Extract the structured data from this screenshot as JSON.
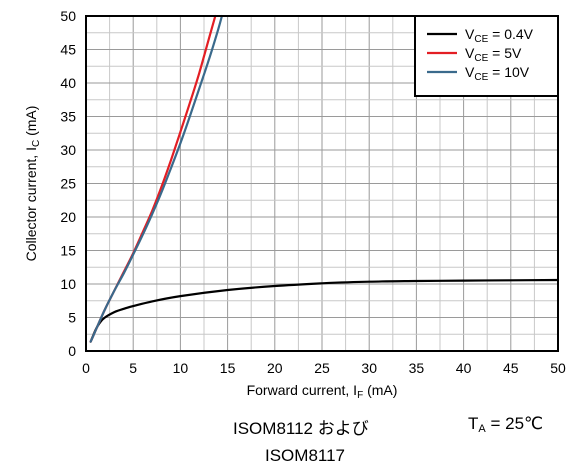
{
  "chart_data": {
    "type": "line",
    "xlabel": {
      "prefix": "Forward current, I",
      "sub": "F",
      "suffix": " (mA)"
    },
    "ylabel": {
      "prefix": "Collector current, I",
      "sub": "C",
      "suffix": " (mA)"
    },
    "xlim": [
      0,
      50
    ],
    "ylim": [
      0,
      50
    ],
    "xticks": [
      0,
      5,
      10,
      15,
      20,
      25,
      30,
      35,
      40,
      45,
      50
    ],
    "yticks": [
      0,
      5,
      10,
      15,
      20,
      25,
      30,
      35,
      40,
      45,
      50
    ],
    "grid": true,
    "legend_position": "top-right",
    "series": [
      {
        "name": {
          "prefix": "V",
          "sub": "CE",
          "suffix": " = 0.4V"
        },
        "color": "#000000",
        "x": [
          0.5,
          1,
          1.5,
          2,
          3,
          4,
          5,
          7,
          10,
          15,
          20,
          25,
          30,
          35,
          40,
          45,
          50
        ],
        "y": [
          1.4,
          3.1,
          4.3,
          5.0,
          5.8,
          6.3,
          6.7,
          7.4,
          8.2,
          9.1,
          9.7,
          10.1,
          10.35,
          10.45,
          10.5,
          10.55,
          10.6
        ]
      },
      {
        "name": {
          "prefix": "V",
          "sub": "CE",
          "suffix": " = 5V"
        },
        "color": "#e31e24",
        "x": [
          0.5,
          1,
          2,
          3,
          4,
          5,
          6,
          7,
          8,
          9,
          10,
          11,
          12,
          13,
          13.7
        ],
        "y": [
          1.4,
          3.0,
          6.2,
          9.0,
          11.8,
          14.6,
          17.7,
          20.9,
          24.5,
          28.5,
          32.7,
          37.0,
          41.5,
          46.5,
          50
        ]
      },
      {
        "name": {
          "prefix": "V",
          "sub": "CE",
          "suffix": " = 10V"
        },
        "color": "#3a6a8c",
        "x": [
          0.5,
          1,
          2,
          3,
          4,
          5,
          6,
          7,
          8,
          9,
          10,
          11,
          12,
          13,
          14,
          14.4
        ],
        "y": [
          1.4,
          3.0,
          6.2,
          9.0,
          11.6,
          14.4,
          17.3,
          20.4,
          23.7,
          27.3,
          31.0,
          35.0,
          39.2,
          43.4,
          48.0,
          50
        ]
      }
    ]
  },
  "footer": {
    "device_line1": "ISOM8112 および",
    "device_line2": "ISOM8117",
    "temperature": {
      "prefix": "T",
      "sub": "A",
      "suffix": " = 25℃"
    }
  }
}
